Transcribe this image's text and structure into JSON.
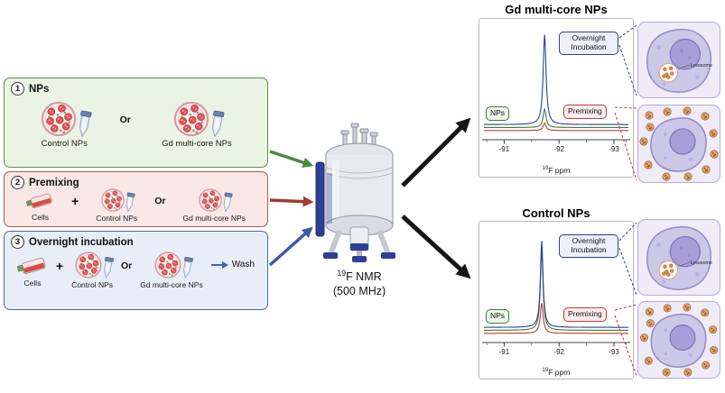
{
  "workflow": {
    "steps": [
      {
        "number": "1",
        "title": "NPs",
        "or": "Or",
        "control_label": "Control NPs",
        "gd_label": "Gd multi-core NPs"
      },
      {
        "number": "2",
        "title": "Premixing",
        "cells": "Cells",
        "plus": "+",
        "or": "Or",
        "control_label": "Control NPs",
        "gd_label": "Gd multi-core NPs"
      },
      {
        "number": "3",
        "title": "Overnight incubation",
        "cells": "Cells",
        "plus": "+",
        "or": "Or",
        "control_label": "Control NPs",
        "gd_label": "Gd multi-core NPs",
        "wash": "Wash"
      }
    ]
  },
  "nmr": {
    "sup": "19",
    "name": "F NMR",
    "freq": "(500 MHz)"
  },
  "cell_panels": {
    "lysosome_label": "Lysosome"
  },
  "spectra": [
    {
      "title": "Gd multi-core NPs",
      "xticks": [
        "-91",
        "-92",
        "-93"
      ],
      "xlabel_sup": "19",
      "xlabel": "F ppm",
      "callouts": {
        "nps": "NPs",
        "overnight": "Overnight Incubation",
        "premixing": "Premixing"
      },
      "series": [
        {
          "name": "Overnight Incubation",
          "color": "#2e3f96",
          "center": 0.42,
          "width": 0.012,
          "height": 0.83,
          "base": 0.115
        },
        {
          "name": "NPs",
          "color": "#3e7d37",
          "center": 0.42,
          "width": 0.012,
          "height": 0.17,
          "base": 0.088
        },
        {
          "name": "Premixing",
          "color": "#c23b3b",
          "center": 0.42,
          "width": 0.012,
          "height": 0.07,
          "base": 0.06
        }
      ]
    },
    {
      "title": "Control NPs",
      "xticks": [
        "-91",
        "-92",
        "-93"
      ],
      "xlabel_sup": "19",
      "xlabel": "F ppm",
      "callouts": {
        "nps": "NPs",
        "overnight": "Overnight Incubation",
        "premixing": "Premixing"
      },
      "series": [
        {
          "name": "Overnight Incubation",
          "color": "#2e3f96",
          "center": 0.4,
          "width": 0.011,
          "height": 0.8,
          "base": 0.115
        },
        {
          "name": "NPs",
          "color": "#3e7d37",
          "center": 0.4,
          "width": 0.011,
          "height": 0.74,
          "base": 0.088
        },
        {
          "name": "Premixing",
          "color": "#c23b3b",
          "center": 0.4,
          "width": 0.012,
          "height": 0.28,
          "base": 0.06
        }
      ]
    }
  ],
  "colors": {
    "step_green": "#5d8f4e",
    "step_red": "#b4574e",
    "step_blue": "#4a69a8",
    "line_blue": "#2e3f96",
    "line_green": "#3e7d37",
    "line_red": "#c23b3b",
    "arrow_black": "#161616"
  }
}
